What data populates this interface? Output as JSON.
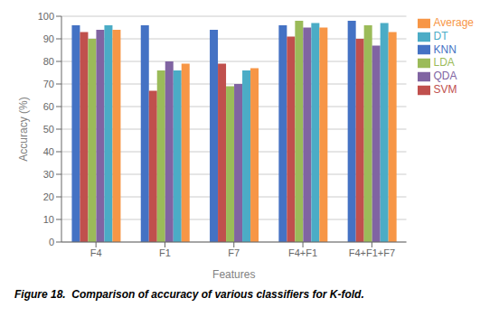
{
  "chart_data": {
    "type": "bar",
    "categories": [
      "F4",
      "F1",
      "F7",
      "F4+F1",
      "F4+F1+F7"
    ],
    "series": [
      {
        "name": "KNN",
        "color": "#4472C4",
        "values": [
          96,
          96,
          94,
          96,
          98
        ]
      },
      {
        "name": "SVM",
        "color": "#C0504D",
        "values": [
          93,
          67,
          79,
          91,
          90
        ]
      },
      {
        "name": "LDA",
        "color": "#9BBB59",
        "values": [
          90,
          76,
          69,
          98,
          96
        ]
      },
      {
        "name": "QDA",
        "color": "#8064A2",
        "values": [
          94,
          80,
          70,
          95,
          87
        ]
      },
      {
        "name": "DT",
        "color": "#4BACC6",
        "values": [
          96,
          76,
          76,
          97,
          97
        ]
      },
      {
        "name": "Average",
        "color": "#F79646",
        "values": [
          94,
          79,
          77,
          95,
          93
        ]
      }
    ],
    "xlabel": "Features",
    "ylabel": "Accuracy (%)",
    "ylim": [
      0,
      100
    ],
    "yticks": [
      0,
      10,
      20,
      30,
      40,
      50,
      60,
      70,
      80,
      90,
      100
    ],
    "grid": true,
    "legend": "right",
    "annotations": [
      "Figure 18.  Comparison of accuracy of various classifiers for K-fold."
    ]
  }
}
